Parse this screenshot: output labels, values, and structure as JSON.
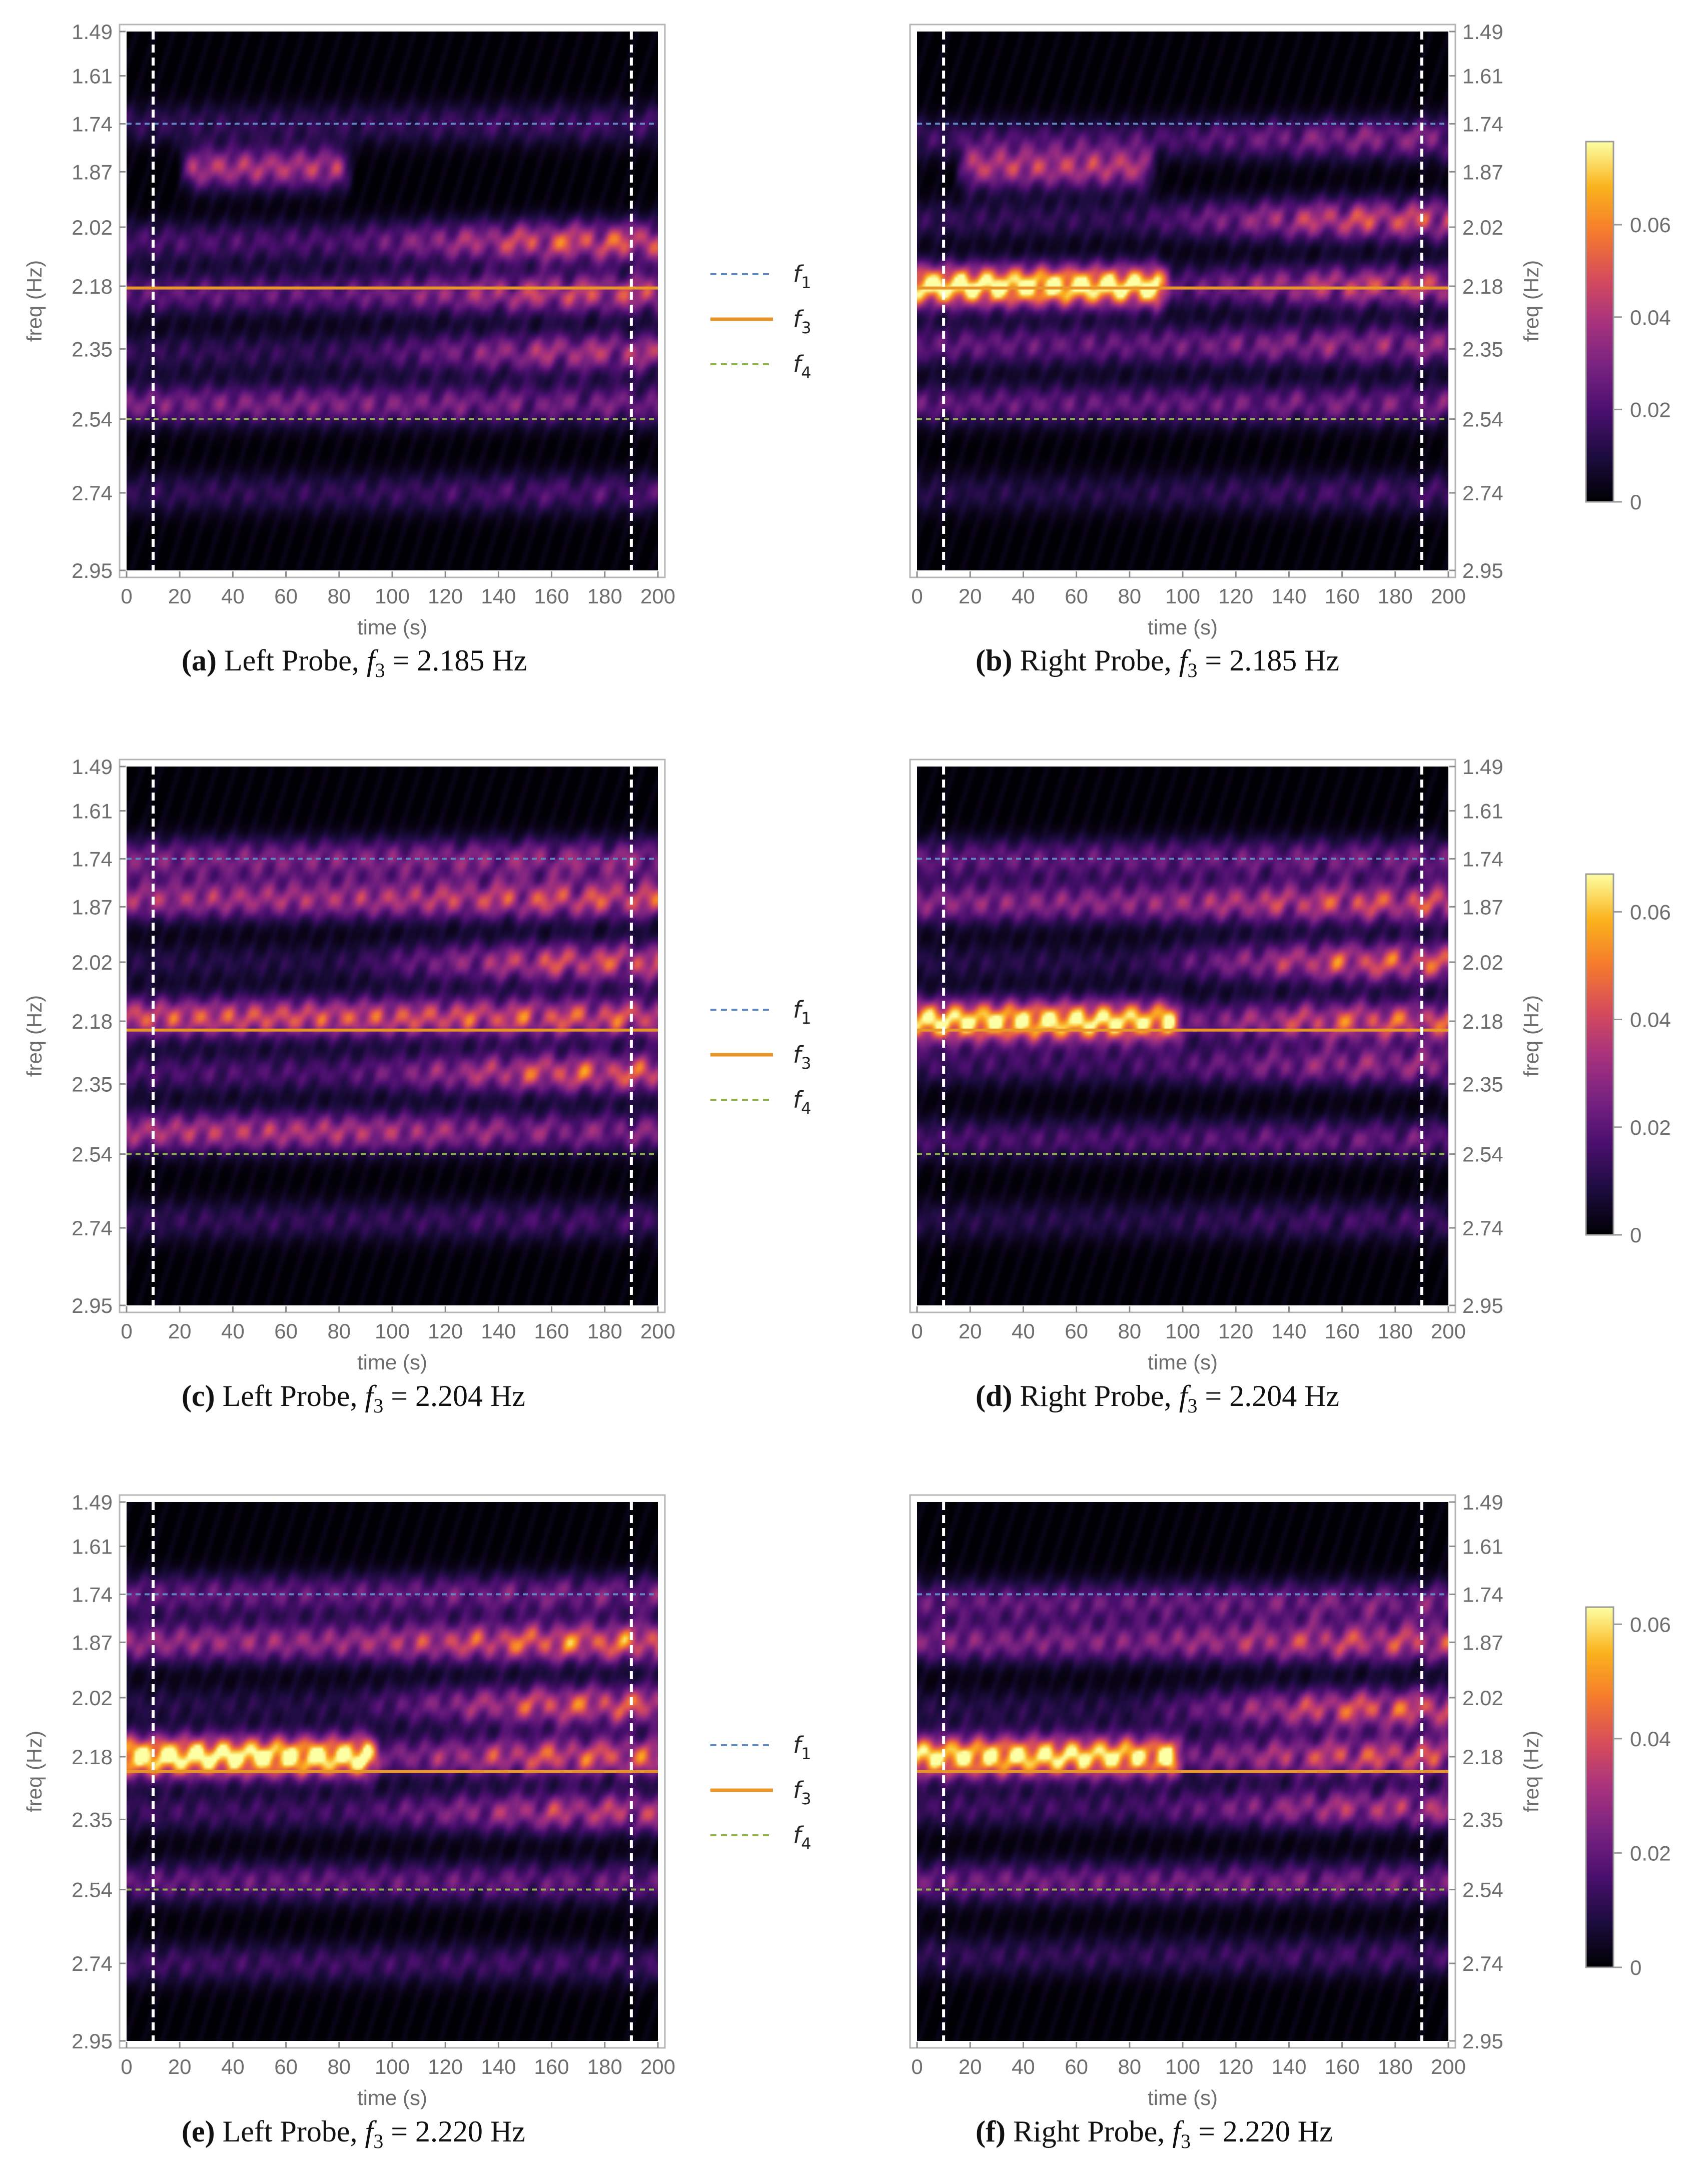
{
  "colors": {
    "f1": "#5f86c0",
    "f3": "#e8962a",
    "f4": "#8fb24a",
    "boundary": "#ffffff",
    "axis": "#8a8a8a",
    "tick_text": "#6e6e6e"
  },
  "colormap": [
    "#000004",
    "#1c0c3e",
    "#4a0f6e",
    "#782281",
    "#a8327d",
    "#d84d5a",
    "#f57b2c",
    "#fbb31d",
    "#fcffa4"
  ],
  "legend": {
    "f1": {
      "base": "f",
      "sub": "1",
      "style": "dashed",
      "color": "#5f86c0"
    },
    "f3": {
      "base": "f",
      "sub": "3",
      "style": "solid",
      "color": "#e8962a"
    },
    "f4": {
      "base": "f",
      "sub": "4",
      "style": "dashed",
      "color": "#8fb24a"
    }
  },
  "chart_data": [
    {
      "id": "a",
      "type": "heatmap",
      "caption": {
        "label": "(a)",
        "probe": "Left Probe,",
        "value": "= 2.185 Hz"
      },
      "xlabel": "time (s)",
      "ylabel": "freq (Hz)",
      "yaxis_side": "left",
      "xlim": [
        0,
        200
      ],
      "xticks": [
        0,
        20,
        40,
        60,
        80,
        100,
        120,
        140,
        160,
        180,
        200
      ],
      "ylim": [
        1.49,
        2.95
      ],
      "yticks": [
        "1.49",
        "1.61",
        "1.74",
        "1.87",
        "2.02",
        "2.18",
        "2.35",
        "2.54",
        "2.74",
        "2.95"
      ],
      "f1": 1.74,
      "f3": 2.185,
      "f4": 2.54,
      "boundaries": [
        10,
        190
      ],
      "bands": [
        {
          "f": 1.74,
          "start": 0,
          "end": 200,
          "early": 0.25,
          "late": 0.3
        },
        {
          "f": 1.86,
          "start": 25,
          "end": 80,
          "early": 0.75,
          "late": 0.15
        },
        {
          "f": 2.06,
          "start": 0,
          "end": 200,
          "early": 0.35,
          "late": 0.9
        },
        {
          "f": 2.2,
          "start": 0,
          "end": 200,
          "early": 0.45,
          "late": 0.8
        },
        {
          "f": 2.36,
          "start": 0,
          "end": 200,
          "early": 0.25,
          "late": 0.7
        },
        {
          "f": 2.5,
          "start": 0,
          "end": 200,
          "early": 0.55,
          "late": 0.5
        },
        {
          "f": 2.74,
          "start": 0,
          "end": 200,
          "early": 0.25,
          "late": 0.35
        }
      ]
    },
    {
      "id": "b",
      "type": "heatmap",
      "caption": {
        "label": "(b)",
        "probe": "Right Probe,",
        "value": "= 2.185 Hz"
      },
      "xlabel": "time (s)",
      "ylabel": "freq (Hz)",
      "yaxis_side": "right",
      "xlim": [
        0,
        200
      ],
      "xticks": [
        0,
        20,
        40,
        60,
        80,
        100,
        120,
        140,
        160,
        180,
        200
      ],
      "ylim": [
        1.49,
        2.95
      ],
      "yticks": [
        "1.49",
        "1.61",
        "1.74",
        "1.87",
        "2.02",
        "2.18",
        "2.35",
        "2.54",
        "2.74",
        "2.95"
      ],
      "f1": 1.74,
      "f3": 2.185,
      "f4": 2.54,
      "boundaries": [
        10,
        190
      ],
      "bands": [
        {
          "f": 1.78,
          "start": 0,
          "end": 200,
          "early": 0.3,
          "late": 0.55
        },
        {
          "f": 1.86,
          "start": 20,
          "end": 85,
          "early": 0.75,
          "late": 0.2
        },
        {
          "f": 2.0,
          "start": 0,
          "end": 200,
          "early": 0.25,
          "late": 0.85
        },
        {
          "f": 2.18,
          "start": 0,
          "end": 90,
          "early": 1.6,
          "late": 0.3
        },
        {
          "f": 2.18,
          "start": 90,
          "end": 200,
          "early": 0.3,
          "late": 0.8
        },
        {
          "f": 2.34,
          "start": 0,
          "end": 200,
          "early": 0.45,
          "late": 0.6
        },
        {
          "f": 2.5,
          "start": 0,
          "end": 200,
          "early": 0.45,
          "late": 0.5
        },
        {
          "f": 2.74,
          "start": 0,
          "end": 200,
          "early": 0.2,
          "late": 0.3
        }
      ]
    },
    {
      "id": "c",
      "type": "heatmap",
      "caption": {
        "label": "(c)",
        "probe": "Left Probe,",
        "value": "= 2.204 Hz"
      },
      "xlabel": "time (s)",
      "ylabel": "freq (Hz)",
      "yaxis_side": "left",
      "xlim": [
        0,
        200
      ],
      "xticks": [
        0,
        20,
        40,
        60,
        80,
        100,
        120,
        140,
        160,
        180,
        200
      ],
      "ylim": [
        1.49,
        2.95
      ],
      "yticks": [
        "1.49",
        "1.61",
        "1.74",
        "1.87",
        "2.02",
        "2.18",
        "2.35",
        "2.54",
        "2.74",
        "2.95"
      ],
      "f1": 1.74,
      "f3": 2.204,
      "f4": 2.54,
      "boundaries": [
        10,
        190
      ],
      "bands": [
        {
          "f": 1.74,
          "start": 0,
          "end": 200,
          "early": 0.55,
          "late": 0.6
        },
        {
          "f": 1.85,
          "start": 0,
          "end": 200,
          "early": 0.7,
          "late": 0.85
        },
        {
          "f": 2.02,
          "start": 0,
          "end": 200,
          "early": 0.2,
          "late": 0.85
        },
        {
          "f": 2.17,
          "start": 0,
          "end": 200,
          "early": 0.9,
          "late": 0.9
        },
        {
          "f": 2.32,
          "start": 0,
          "end": 200,
          "early": 0.35,
          "late": 0.9
        },
        {
          "f": 2.48,
          "start": 0,
          "end": 200,
          "early": 0.75,
          "late": 0.55
        },
        {
          "f": 2.72,
          "start": 0,
          "end": 200,
          "early": 0.25,
          "late": 0.3
        }
      ]
    },
    {
      "id": "d",
      "type": "heatmap",
      "caption": {
        "label": "(d)",
        "probe": "Right Probe,",
        "value": "= 2.204 Hz"
      },
      "xlabel": "time (s)",
      "ylabel": "freq (Hz)",
      "yaxis_side": "right",
      "xlim": [
        0,
        200
      ],
      "xticks": [
        0,
        20,
        40,
        60,
        80,
        100,
        120,
        140,
        160,
        180,
        200
      ],
      "ylim": [
        1.49,
        2.95
      ],
      "yticks": [
        "1.49",
        "1.61",
        "1.74",
        "1.87",
        "2.02",
        "2.18",
        "2.35",
        "2.54",
        "2.74",
        "2.95"
      ],
      "f1": 1.74,
      "f3": 2.204,
      "f4": 2.54,
      "boundaries": [
        10,
        190
      ],
      "bands": [
        {
          "f": 1.74,
          "start": 0,
          "end": 200,
          "early": 0.45,
          "late": 0.5
        },
        {
          "f": 1.86,
          "start": 0,
          "end": 200,
          "early": 0.6,
          "late": 0.85
        },
        {
          "f": 2.02,
          "start": 0,
          "end": 200,
          "early": 0.2,
          "late": 0.9
        },
        {
          "f": 2.18,
          "start": 0,
          "end": 95,
          "early": 1.5,
          "late": 0.3
        },
        {
          "f": 2.18,
          "start": 95,
          "end": 200,
          "early": 0.3,
          "late": 0.9
        },
        {
          "f": 2.3,
          "start": 0,
          "end": 200,
          "early": 0.3,
          "late": 0.6
        },
        {
          "f": 2.5,
          "start": 0,
          "end": 200,
          "early": 0.35,
          "late": 0.45
        },
        {
          "f": 2.72,
          "start": 0,
          "end": 200,
          "early": 0.2,
          "late": 0.3
        }
      ]
    },
    {
      "id": "e",
      "type": "heatmap",
      "caption": {
        "label": "(e)",
        "probe": "Left Probe,",
        "value": "= 2.220 Hz"
      },
      "xlabel": "time (s)",
      "ylabel": "freq (Hz)",
      "yaxis_side": "left",
      "xlim": [
        0,
        200
      ],
      "xticks": [
        0,
        20,
        40,
        60,
        80,
        100,
        120,
        140,
        160,
        180,
        200
      ],
      "ylim": [
        1.49,
        2.95
      ],
      "yticks": [
        "1.49",
        "1.61",
        "1.74",
        "1.87",
        "2.02",
        "2.18",
        "2.35",
        "2.54",
        "2.74",
        "2.95"
      ],
      "f1": 1.74,
      "f3": 2.22,
      "f4": 2.54,
      "boundaries": [
        10,
        190
      ],
      "bands": [
        {
          "f": 1.74,
          "start": 0,
          "end": 200,
          "early": 0.45,
          "late": 0.5
        },
        {
          "f": 1.87,
          "start": 0,
          "end": 200,
          "early": 0.65,
          "late": 1.0
        },
        {
          "f": 2.04,
          "start": 0,
          "end": 200,
          "early": 0.2,
          "late": 0.9
        },
        {
          "f": 2.18,
          "start": 0,
          "end": 90,
          "early": 1.6,
          "late": 0.4
        },
        {
          "f": 2.18,
          "start": 90,
          "end": 200,
          "early": 0.4,
          "late": 0.9
        },
        {
          "f": 2.33,
          "start": 0,
          "end": 200,
          "early": 0.3,
          "late": 0.75
        },
        {
          "f": 2.52,
          "start": 0,
          "end": 200,
          "early": 0.45,
          "late": 0.45
        },
        {
          "f": 2.74,
          "start": 0,
          "end": 200,
          "early": 0.3,
          "late": 0.3
        }
      ]
    },
    {
      "id": "f",
      "type": "heatmap",
      "caption": {
        "label": "(f)",
        "probe": "Right Probe,",
        "value": "= 2.220 Hz"
      },
      "xlabel": "time (s)",
      "ylabel": "freq (Hz)",
      "yaxis_side": "right",
      "xlim": [
        0,
        200
      ],
      "xticks": [
        0,
        20,
        40,
        60,
        80,
        100,
        120,
        140,
        160,
        180,
        200
      ],
      "ylim": [
        1.49,
        2.95
      ],
      "yticks": [
        "1.49",
        "1.61",
        "1.74",
        "1.87",
        "2.02",
        "2.18",
        "2.35",
        "2.54",
        "2.74",
        "2.95"
      ],
      "f1": 1.74,
      "f3": 2.22,
      "f4": 2.54,
      "boundaries": [
        10,
        190
      ],
      "bands": [
        {
          "f": 1.76,
          "start": 0,
          "end": 200,
          "early": 0.45,
          "late": 0.5
        },
        {
          "f": 1.87,
          "start": 0,
          "end": 200,
          "early": 0.55,
          "late": 0.8
        },
        {
          "f": 2.05,
          "start": 0,
          "end": 200,
          "early": 0.2,
          "late": 0.9
        },
        {
          "f": 2.18,
          "start": 0,
          "end": 95,
          "early": 1.5,
          "late": 0.35
        },
        {
          "f": 2.18,
          "start": 95,
          "end": 200,
          "early": 0.35,
          "late": 0.85
        },
        {
          "f": 2.32,
          "start": 0,
          "end": 200,
          "early": 0.3,
          "late": 0.7
        },
        {
          "f": 2.52,
          "start": 0,
          "end": 200,
          "early": 0.5,
          "late": 0.5
        },
        {
          "f": 2.72,
          "start": 0,
          "end": 200,
          "early": 0.25,
          "late": 0.3
        }
      ]
    }
  ],
  "colorbars": [
    {
      "id": "cb1",
      "rows": "a-b",
      "max": 0.078,
      "ticks": [
        {
          "v": 0,
          "label": "0"
        },
        {
          "v": 0.02,
          "label": "0.02"
        },
        {
          "v": 0.04,
          "label": "0.04"
        },
        {
          "v": 0.06,
          "label": "0.06"
        }
      ]
    },
    {
      "id": "cb2",
      "rows": "c-d",
      "max": 0.067,
      "ticks": [
        {
          "v": 0,
          "label": "0"
        },
        {
          "v": 0.02,
          "label": "0.02"
        },
        {
          "v": 0.04,
          "label": "0.04"
        },
        {
          "v": 0.06,
          "label": "0.06"
        }
      ]
    },
    {
      "id": "cb3",
      "rows": "e-f",
      "max": 0.063,
      "ticks": [
        {
          "v": 0,
          "label": "0"
        },
        {
          "v": 0.02,
          "label": "0.02"
        },
        {
          "v": 0.04,
          "label": "0.04"
        },
        {
          "v": 0.06,
          "label": "0.06"
        }
      ]
    }
  ]
}
